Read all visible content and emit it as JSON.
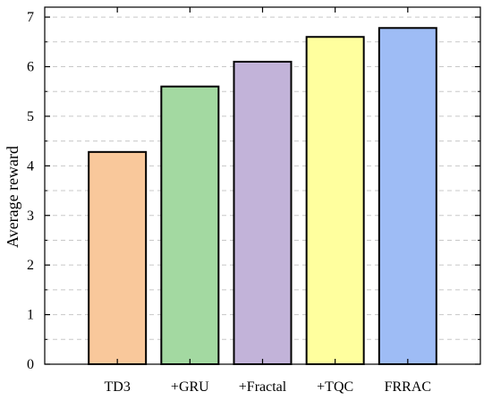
{
  "chart_data": {
    "type": "bar",
    "title": "",
    "xlabel": "",
    "ylabel": "Average reward",
    "categories": [
      "TD3",
      "+GRU",
      "+Fractal",
      "+TQC",
      "FRRAC"
    ],
    "values": [
      4.28,
      5.6,
      6.1,
      6.6,
      6.78
    ],
    "ylim": [
      0,
      7.2
    ],
    "yticks": [
      "0",
      "1",
      "2",
      "3",
      "4",
      "5",
      "6",
      "7"
    ],
    "grid": "horizontal dashed, major and minor",
    "colors": [
      "#f9c89b",
      "#a3d9a1",
      "#c2b3d9",
      "#ffff9e",
      "#9ebcf5"
    ],
    "bar_edge_color": "#000000"
  }
}
